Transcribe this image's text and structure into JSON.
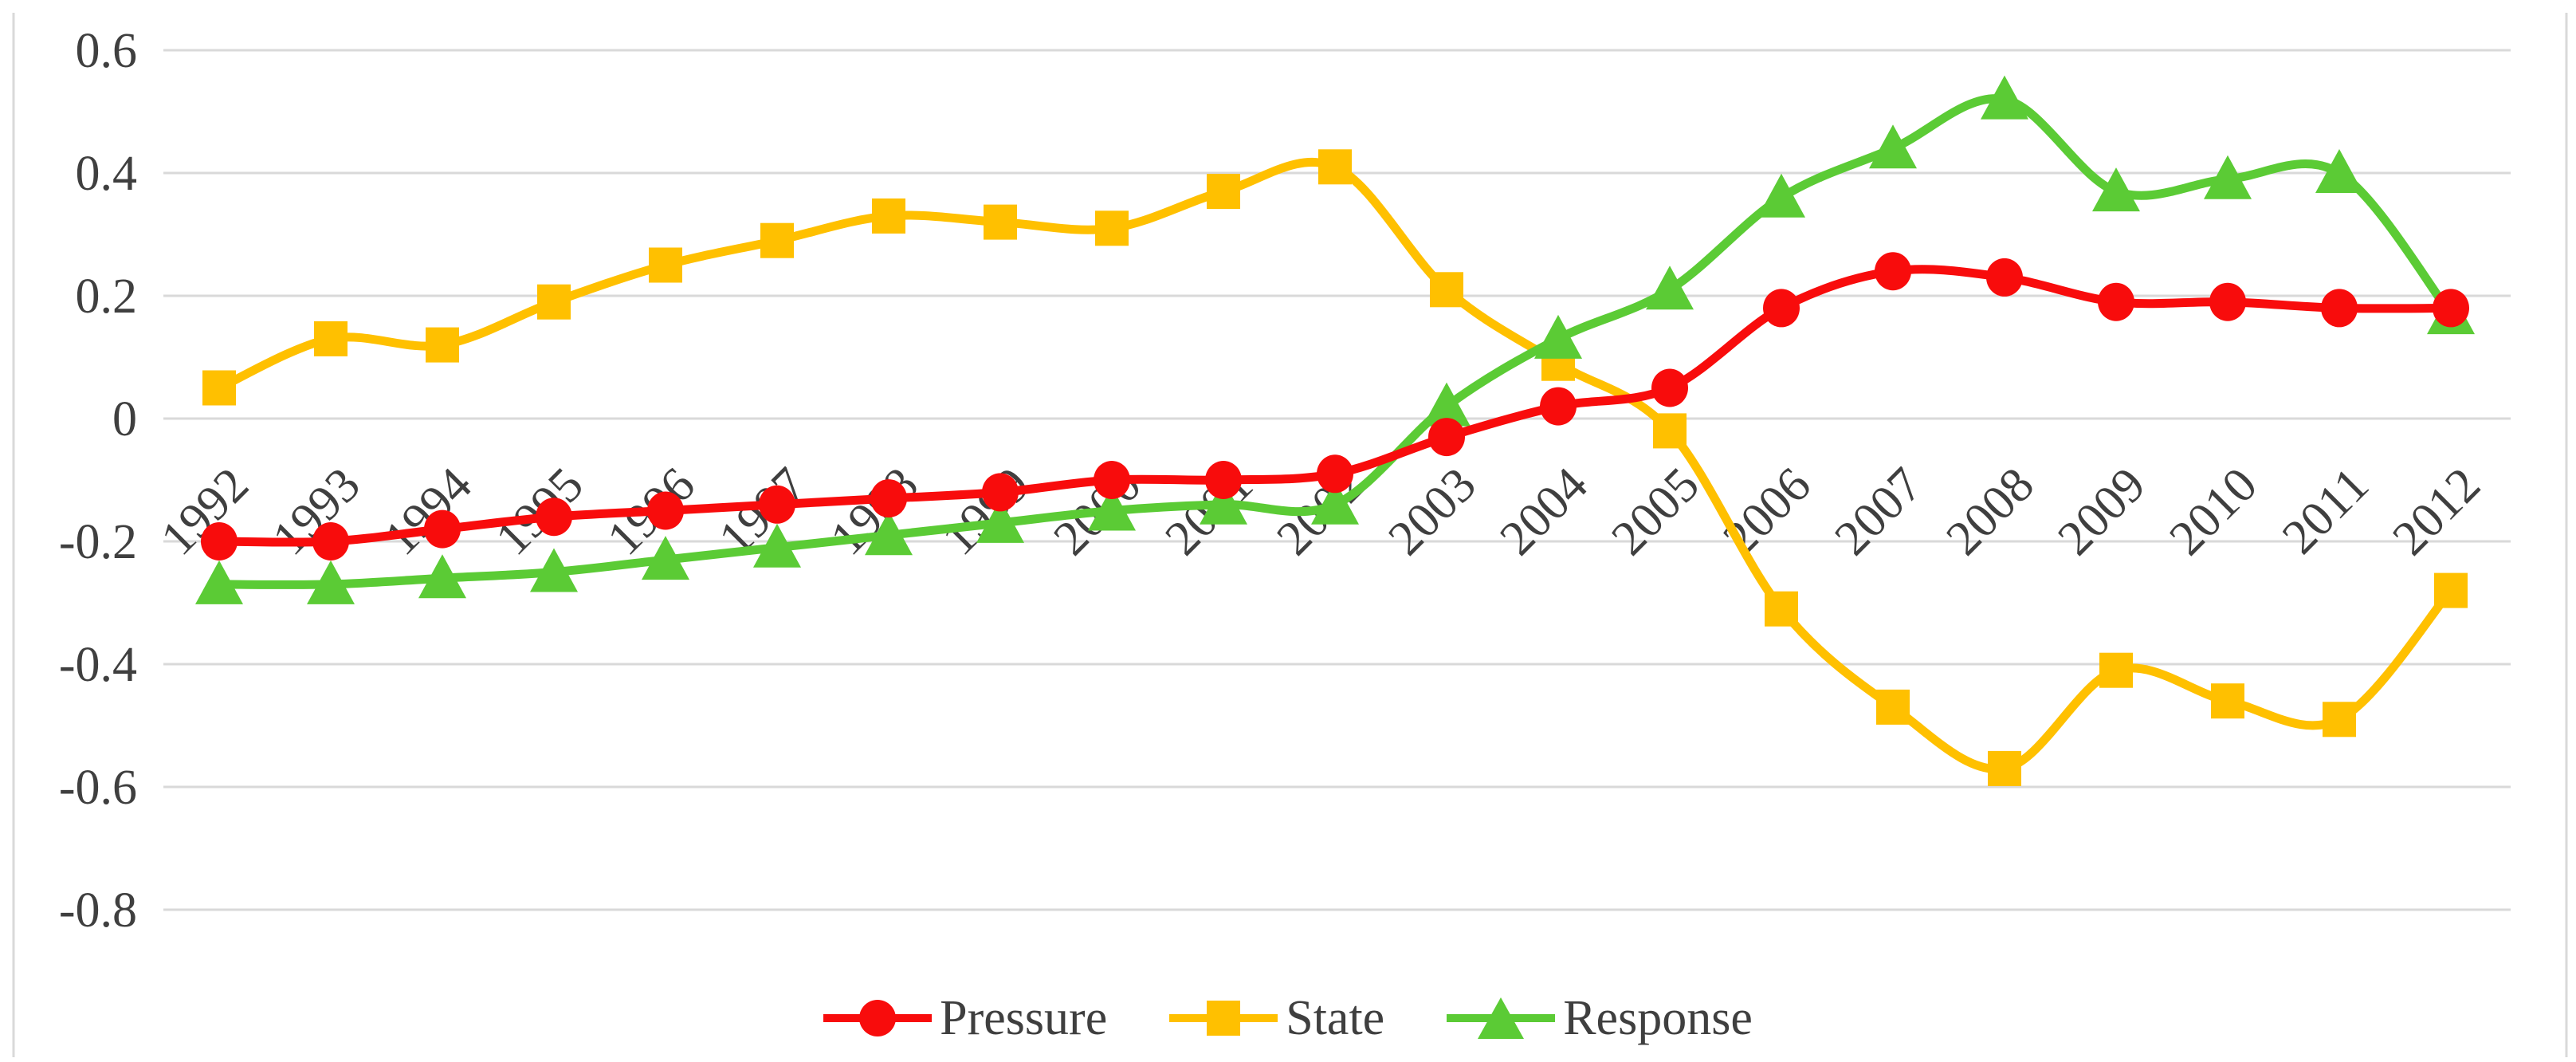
{
  "chart_data": {
    "type": "line",
    "title": "",
    "xlabel": "",
    "ylabel": "",
    "x": [
      1992,
      1993,
      1994,
      1995,
      1996,
      1997,
      1998,
      1999,
      2000,
      2001,
      2002,
      2003,
      2004,
      2005,
      2006,
      2007,
      2008,
      2009,
      2010,
      2011,
      2012
    ],
    "series": [
      {
        "name": "Pressure",
        "marker": "circle",
        "color": "#f80c0c",
        "values": [
          -0.2,
          -0.2,
          -0.18,
          -0.16,
          -0.15,
          -0.14,
          -0.13,
          -0.12,
          -0.1,
          -0.1,
          -0.09,
          -0.03,
          0.02,
          0.05,
          0.18,
          0.24,
          0.23,
          0.19,
          0.19,
          0.18,
          0.18
        ]
      },
      {
        "name": "State",
        "marker": "square",
        "color": "#ffc000",
        "values": [
          0.05,
          0.13,
          0.12,
          0.19,
          0.25,
          0.29,
          0.33,
          0.32,
          0.31,
          0.37,
          0.41,
          0.21,
          0.09,
          -0.02,
          -0.31,
          -0.47,
          -0.57,
          -0.41,
          -0.46,
          -0.49,
          -0.28
        ]
      },
      {
        "name": "Response",
        "marker": "triangle",
        "color": "#5bcb35",
        "values": [
          -0.27,
          -0.27,
          -0.26,
          -0.25,
          -0.23,
          -0.21,
          -0.19,
          -0.17,
          -0.15,
          -0.14,
          -0.14,
          0.02,
          0.13,
          0.21,
          0.36,
          0.44,
          0.52,
          0.37,
          0.39,
          0.4,
          0.17
        ]
      }
    ],
    "ylim": [
      -0.8,
      0.6
    ],
    "yticks": [
      0.6,
      0.4,
      0.2,
      0,
      -0.2,
      -0.4,
      -0.6,
      -0.8
    ],
    "ytick_labels": [
      "0.6",
      "0.4",
      "0.2",
      "0",
      "-0.2",
      "-0.4",
      "-0.6",
      "-0.8"
    ],
    "grid": true,
    "legend_position": "bottom",
    "x_label_rotation_deg": 45,
    "colors": {
      "gridline": "#d9d9d9",
      "chart_border": "#d9d9d9",
      "axis_text": "#3f3f3f"
    }
  }
}
